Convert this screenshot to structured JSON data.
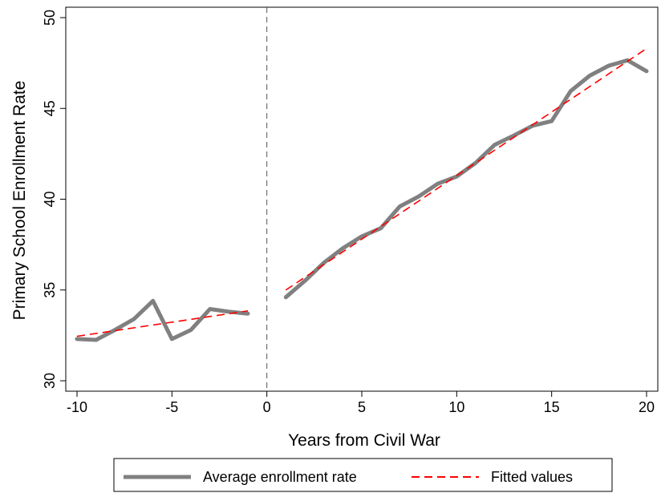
{
  "chart_data": {
    "type": "line",
    "xlabel": "Years from Civil War",
    "ylabel": "Primary School Enrollment Rate",
    "xlim": [
      -10,
      20
    ],
    "ylim": [
      30,
      50
    ],
    "xticks": [
      -10,
      -5,
      0,
      5,
      10,
      15,
      20
    ],
    "yticks": [
      30,
      35,
      40,
      45,
      50
    ],
    "vline_x": 0,
    "grid": false,
    "legend_position": "bottom",
    "series": [
      {
        "name": "Average enrollment rate",
        "color": "#808080",
        "style": "solid",
        "segments": [
          {
            "x": [
              -10,
              -9,
              -8,
              -7,
              -6,
              -5,
              -4,
              -3,
              -2,
              -1
            ],
            "y": [
              32.3,
              32.25,
              32.8,
              33.4,
              34.4,
              32.3,
              32.8,
              33.95,
              33.8,
              33.7
            ]
          },
          {
            "x": [
              1,
              2,
              3,
              4,
              5,
              6,
              7,
              8,
              9,
              10,
              11,
              12,
              13,
              14,
              15,
              16,
              17,
              18,
              19,
              20
            ],
            "y": [
              34.6,
              35.5,
              36.5,
              37.3,
              37.95,
              38.4,
              39.6,
              40.15,
              40.85,
              41.25,
              42.0,
              43.0,
              43.5,
              44.05,
              44.3,
              45.95,
              46.8,
              47.35,
              47.65,
              47.05
            ]
          }
        ]
      },
      {
        "name": "Fitted values",
        "color": "#ff0000",
        "style": "dashed",
        "segments": [
          {
            "x": [
              -10,
              -1
            ],
            "y": [
              32.45,
              33.85
            ]
          },
          {
            "x": [
              1,
              20
            ],
            "y": [
              35.0,
              48.3
            ]
          }
        ]
      }
    ]
  }
}
